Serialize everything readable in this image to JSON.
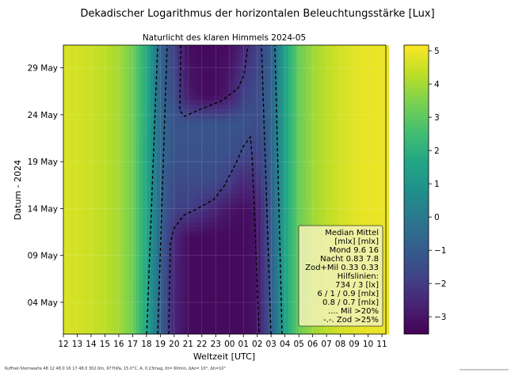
{
  "chart_data": {
    "type": "heatmap",
    "title": "Dekadischer Logarithmus der horizontalen Beleuchtungsstärke [Lux]",
    "subtitle": "Naturlicht des klaren Himmels 2024-05",
    "xlabel": "Weltzeit [UTC]",
    "ylabel": "Datum - 2024",
    "x_tick_labels": [
      "12",
      "13",
      "14",
      "15",
      "16",
      "17",
      "18",
      "19",
      "20",
      "21",
      "22",
      "23",
      "00",
      "01",
      "02",
      "03",
      "04",
      "05",
      "06",
      "07",
      "08",
      "09",
      "10",
      "11"
    ],
    "y_ticks": [
      {
        "day": 4,
        "label": "04 May"
      },
      {
        "day": 9,
        "label": "09 May"
      },
      {
        "day": 14,
        "label": "14 May"
      },
      {
        "day": 19,
        "label": "19 May"
      },
      {
        "day": 24,
        "label": "24 May"
      },
      {
        "day": 29,
        "label": "29 May"
      }
    ],
    "y_range_days": [
      0.6,
      31.4
    ],
    "colormap": "viridis",
    "colorbar": {
      "range": [
        -3.52,
        5.17
      ],
      "ticks": [
        5,
        4,
        3,
        2,
        1,
        0,
        -1,
        -2,
        -3
      ],
      "tick_labels": [
        "5",
        "4",
        "3",
        "2",
        "1",
        "0",
        "−1",
        "−2",
        "−3"
      ]
    },
    "grid": true,
    "grid_hours_utc": [
      12,
      13,
      14,
      15,
      16,
      17,
      18,
      19,
      20,
      21,
      22,
      23,
      0,
      1,
      2,
      3,
      4,
      5,
      6,
      7,
      8,
      9,
      10,
      11
    ],
    "grid_days": [
      1,
      6,
      11,
      14,
      17,
      20,
      23,
      26,
      31
    ],
    "values": [
      [
        4.7,
        4.6,
        4.5,
        4.3,
        4.0,
        3.3,
        1.6,
        -0.8,
        -2.6,
        -3.2,
        -3.3,
        -3.3,
        -3.3,
        -3.3,
        -3.0,
        -1.0,
        1.5,
        3.2,
        3.9,
        4.3,
        4.6,
        4.8,
        4.9,
        4.9
      ],
      [
        4.7,
        4.6,
        4.5,
        4.3,
        4.0,
        3.3,
        1.6,
        -0.8,
        -2.6,
        -3.2,
        -3.3,
        -3.3,
        -3.3,
        -3.3,
        -3.0,
        -1.0,
        1.5,
        3.2,
        3.9,
        4.3,
        4.6,
        4.8,
        4.9,
        4.9
      ],
      [
        4.7,
        4.6,
        4.5,
        4.3,
        4.0,
        3.3,
        1.7,
        -0.7,
        -2.5,
        -3.2,
        -3.3,
        -3.3,
        -3.3,
        -3.3,
        -3.0,
        -1.0,
        1.5,
        3.2,
        3.9,
        4.3,
        4.6,
        4.8,
        4.9,
        4.9
      ],
      [
        4.7,
        4.6,
        4.5,
        4.3,
        4.0,
        3.3,
        1.7,
        -0.6,
        -1.8,
        -1.9,
        -2.2,
        -2.6,
        -3.0,
        -3.2,
        -2.9,
        -1.0,
        1.5,
        3.2,
        3.9,
        4.3,
        4.6,
        4.8,
        4.9,
        4.9
      ],
      [
        4.7,
        4.6,
        4.5,
        4.3,
        4.0,
        3.3,
        1.7,
        -0.6,
        -1.5,
        -1.5,
        -1.5,
        -1.6,
        -1.9,
        -2.5,
        -2.2,
        -0.9,
        1.5,
        3.2,
        3.9,
        4.3,
        4.6,
        4.8,
        4.9,
        4.9
      ],
      [
        4.7,
        4.6,
        4.5,
        4.3,
        4.0,
        3.3,
        1.7,
        -0.5,
        -1.3,
        -1.3,
        -1.3,
        -1.3,
        -1.4,
        -1.6,
        -1.8,
        -0.8,
        1.5,
        3.2,
        3.9,
        4.3,
        4.6,
        4.8,
        4.9,
        4.9
      ],
      [
        4.7,
        4.6,
        4.5,
        4.3,
        4.0,
        3.3,
        1.8,
        -0.5,
        -1.2,
        -1.2,
        -1.2,
        -1.2,
        -1.2,
        -1.3,
        -1.5,
        -0.7,
        1.5,
        3.2,
        3.9,
        4.3,
        4.6,
        4.8,
        4.9,
        4.9
      ],
      [
        4.7,
        4.6,
        4.5,
        4.3,
        4.0,
        3.3,
        1.8,
        -0.6,
        -1.5,
        -2.8,
        -3.2,
        -3.2,
        -2.8,
        -1.8,
        -1.5,
        -0.8,
        1.5,
        3.2,
        3.9,
        4.3,
        4.6,
        4.8,
        4.9,
        4.9
      ],
      [
        4.7,
        4.6,
        4.5,
        4.3,
        4.0,
        3.3,
        1.8,
        -0.7,
        -1.8,
        -3.2,
        -3.3,
        -3.3,
        -3.2,
        -2.5,
        -1.8,
        -0.9,
        1.5,
        3.2,
        3.9,
        4.3,
        4.6,
        4.8,
        4.9,
        4.9
      ]
    ],
    "dashed_contours": [
      {
        "points": [
          [
            18.01,
            0.62
          ],
          [
            18.81,
            31.42
          ]
        ]
      },
      {
        "points": [
          [
            18.81,
            0.62
          ],
          [
            19.49,
            31.42
          ]
        ]
      },
      {
        "points": [
          [
            2.99,
            0.62
          ],
          [
            2.3,
            31.42
          ]
        ]
      },
      {
        "points": [
          [
            3.79,
            0.62
          ],
          [
            3.27,
            31.42
          ]
        ]
      },
      {
        "points": [
          [
            19.61,
            0.62
          ],
          [
            19.72,
            10.24
          ],
          [
            20.01,
            11.93
          ],
          [
            20.7,
            13.28
          ],
          [
            21.73,
            14.04
          ],
          [
            22.87,
            14.97
          ],
          [
            23.61,
            16.4
          ],
          [
            0.41,
            18.68
          ],
          [
            0.99,
            20.62
          ],
          [
            1.5,
            21.63
          ],
          [
            1.62,
            19.78
          ],
          [
            1.84,
            11.93
          ],
          [
            2.13,
            0.62
          ]
        ]
      },
      {
        "points": [
          [
            20.47,
            31.42
          ],
          [
            20.41,
            24.42
          ],
          [
            20.75,
            23.83
          ],
          [
            21.9,
            24.59
          ],
          [
            23.44,
            25.51
          ],
          [
            0.59,
            26.78
          ],
          [
            1.04,
            28.21
          ],
          [
            1.33,
            31.34
          ]
        ]
      }
    ],
    "legend": {
      "lines": [
        "Median Mittel",
        "[mlx]  [mlx]",
        "Mond  9.6  16",
        "Nacht 0.83 7.8",
        "Zod+Mil 0.33  0.33",
        "Hilfslinien:",
        "734 / 3  [lx]",
        "6 /  1 / 0.9 [mlx]",
        "0.8 / 0.7 [mlx]",
        ".... Mil >20%",
        "-.-. Zod >25%"
      ],
      "placement": "lower-right",
      "background": "#f2f2b8",
      "border": "#333333"
    }
  },
  "footer": {
    "text": "Kuffner-Sternwarte 48 12 48.0 16 17 48.0 302.0m,  977hPa, 15.0°C, A, 0.23mag, δt= 60min, ΔAz= 10°, Δh=10°"
  }
}
